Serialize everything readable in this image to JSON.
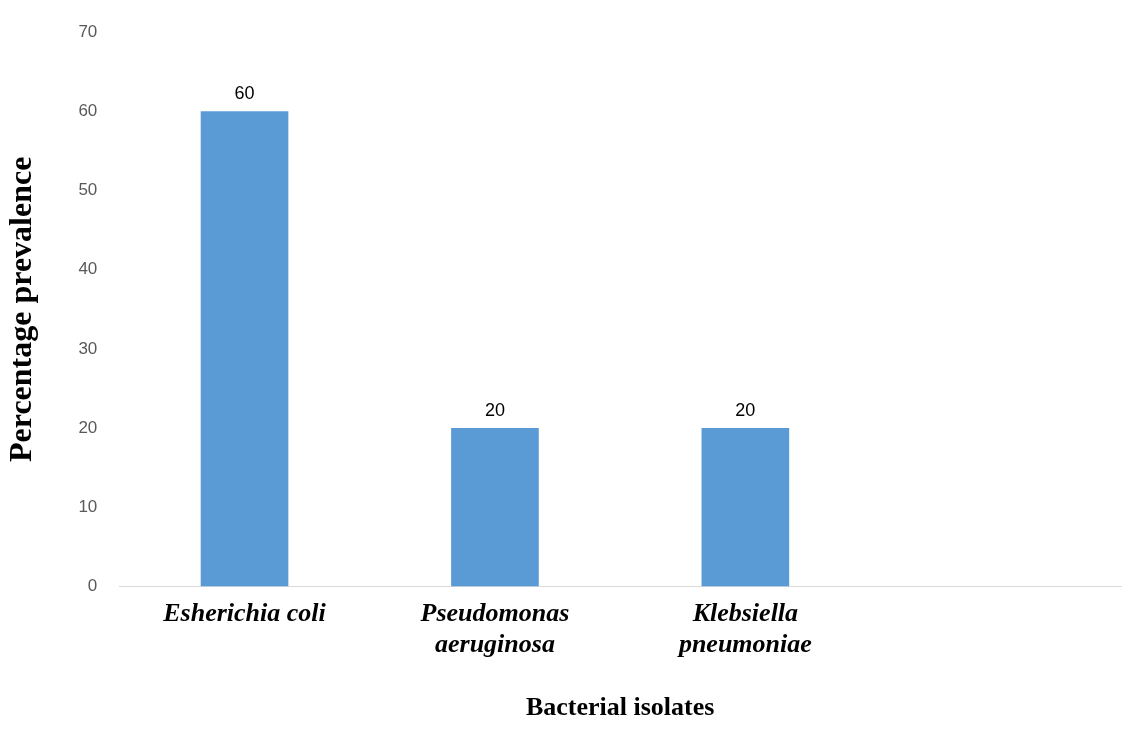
{
  "chart_data": {
    "type": "bar",
    "xlabel": "Bacterial isolates",
    "ylabel": "Percentage prevalence",
    "categories": [
      "Esherichia coli",
      "Pseudomonas aeruginosa",
      "Klebsiella pneumoniae",
      null
    ],
    "values": [
      60,
      20,
      20,
      null
    ],
    "color": "#5b9bd5",
    "ylim": [
      0,
      70
    ],
    "yticks": [
      0,
      10,
      20,
      30,
      40,
      50,
      60,
      70
    ],
    "grid": false,
    "data_labels": true
  }
}
